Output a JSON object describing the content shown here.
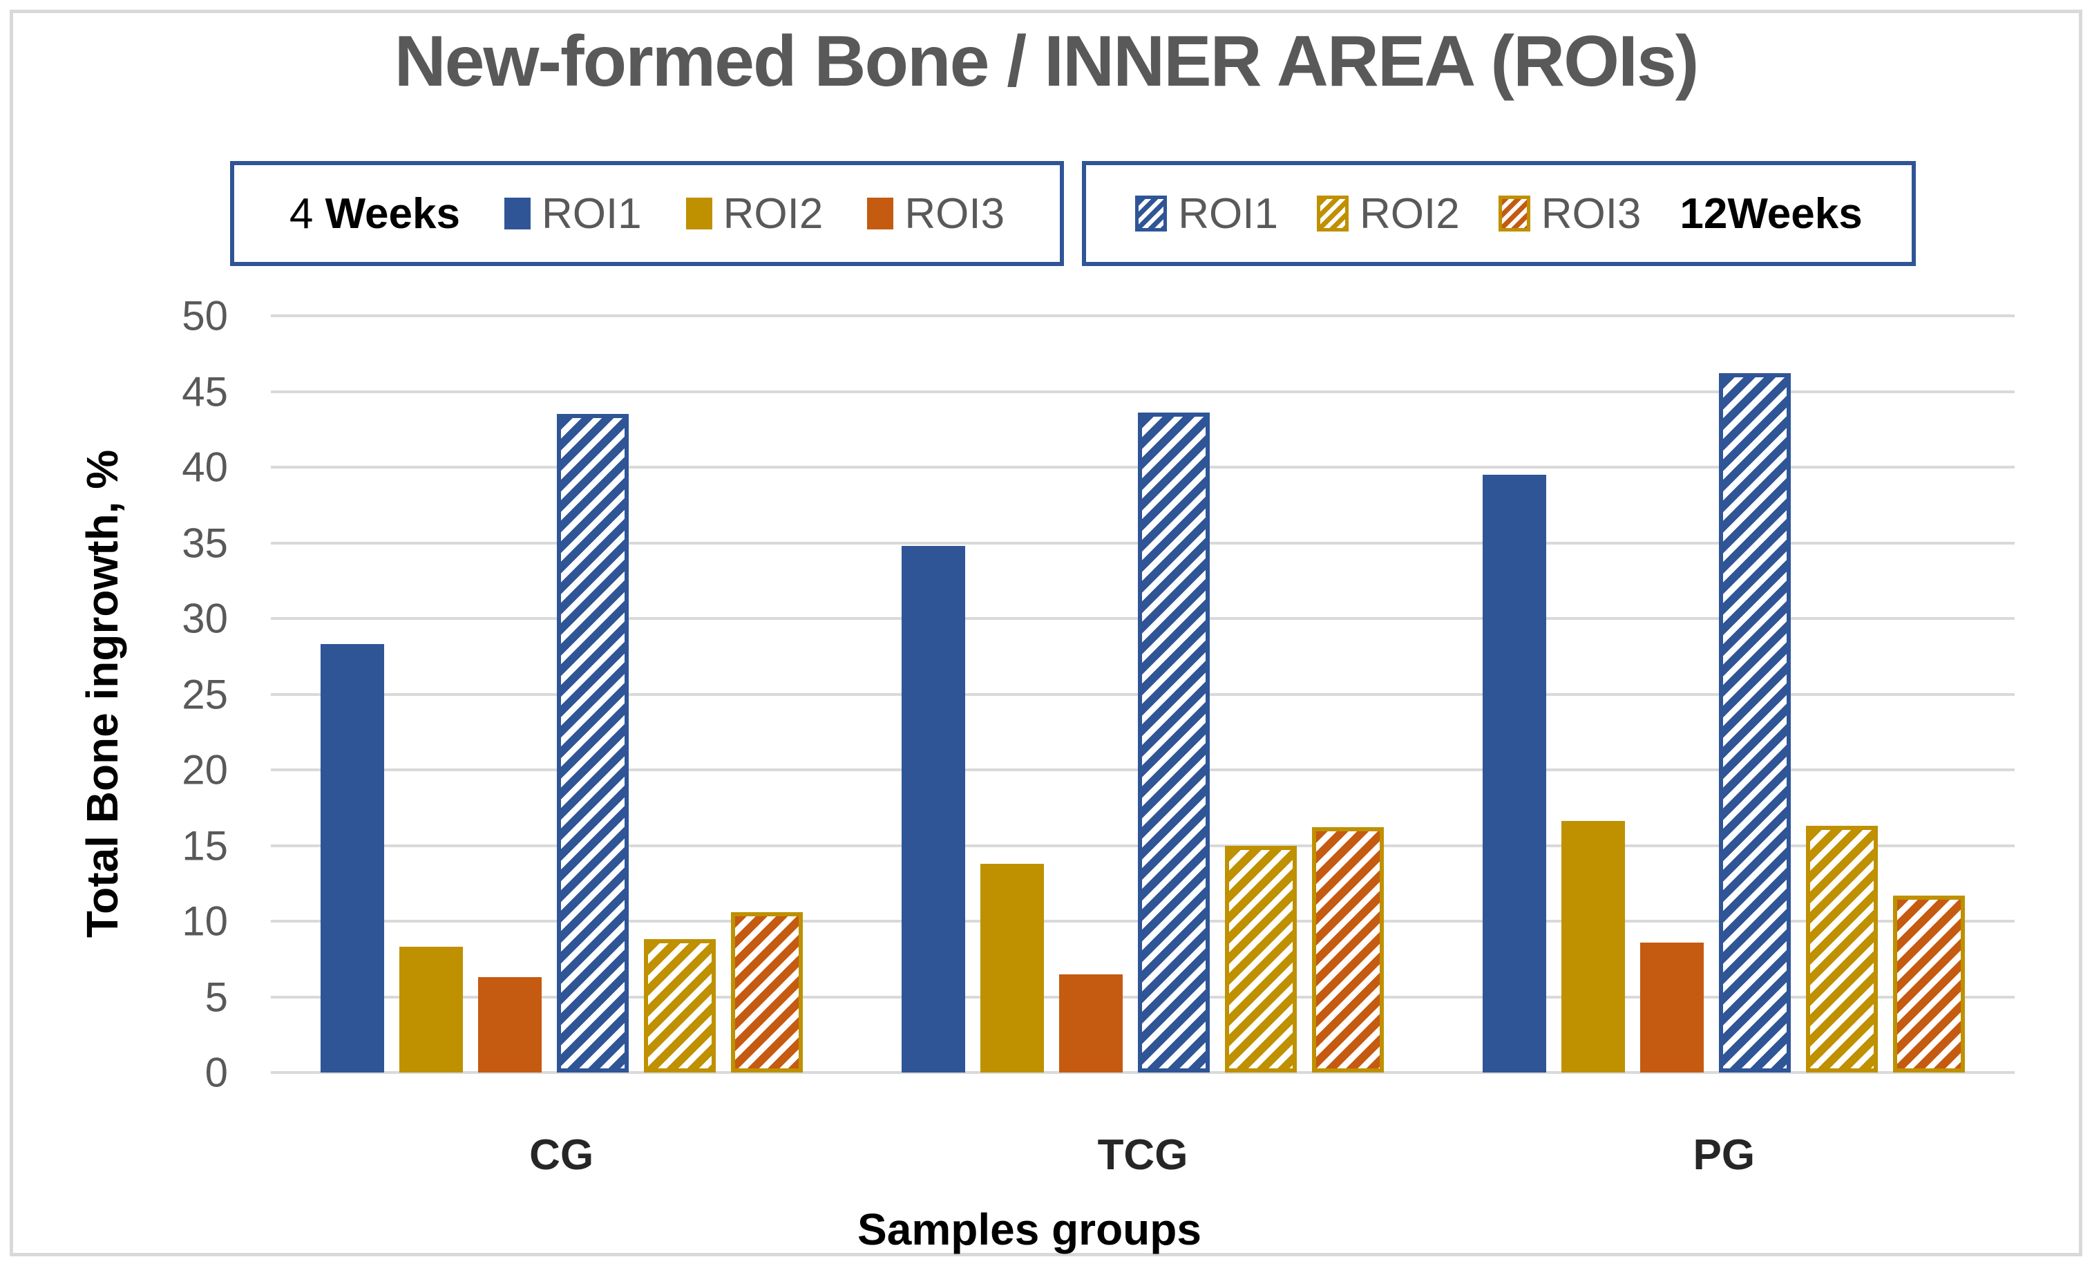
{
  "title": "New-formed Bone / INNER AREA (ROIs)",
  "legend": {
    "four_weeks_prefix": "4 ",
    "four_weeks_bold": "Weeks",
    "twelve_weeks": "12Weeks",
    "solid_items": [
      {
        "label": "ROI1",
        "color": "#2f5597"
      },
      {
        "label": "ROI2",
        "color": "#bf9000"
      },
      {
        "label": "ROI3",
        "color": "#c55a11"
      }
    ],
    "hatched_items": [
      {
        "label": "ROI1",
        "stripe": "#2f5597",
        "border": "#2f5597"
      },
      {
        "label": "ROI2",
        "stripe": "#bf9000",
        "border": "#bf9000"
      },
      {
        "label": "ROI3",
        "stripe": "#c55a11",
        "border": "#bf9000"
      }
    ]
  },
  "chart_data": {
    "type": "bar",
    "title": "New-formed Bone / INNER AREA (ROIs)",
    "xlabel": "Samples groups",
    "ylabel": "Total Bone ingrowth, %",
    "ylim": [
      0,
      50
    ],
    "ytick_step": 5,
    "grid": true,
    "legend_position": "top",
    "categories": [
      "CG",
      "TCG",
      "PG"
    ],
    "series": [
      {
        "name": "ROI1 4 Weeks",
        "style": "solid",
        "color": "#2f5597",
        "values": [
          28.3,
          34.8,
          39.5
        ]
      },
      {
        "name": "ROI2 4 Weeks",
        "style": "solid",
        "color": "#bf9000",
        "values": [
          8.3,
          13.8,
          16.6
        ]
      },
      {
        "name": "ROI3 4 Weeks",
        "style": "solid",
        "color": "#c55a11",
        "values": [
          6.3,
          6.5,
          8.6
        ]
      },
      {
        "name": "ROI1 12 Weeks",
        "style": "hatched",
        "color": "#2f5597",
        "border": "#2f5597",
        "values": [
          43.5,
          43.6,
          46.2
        ]
      },
      {
        "name": "ROI2 12 Weeks",
        "style": "hatched",
        "color": "#bf9000",
        "border": "#bf9000",
        "values": [
          8.8,
          15.0,
          16.3
        ]
      },
      {
        "name": "ROI3 12 Weeks",
        "style": "hatched",
        "color": "#c55a11",
        "border": "#bf9000",
        "values": [
          10.6,
          16.2,
          11.7
        ]
      }
    ]
  },
  "colors": {
    "grid": "#d9d9d9",
    "frame_border": "#d9d9d9",
    "tick_text": "#595959",
    "title_text": "#595959",
    "legend_border": "#2f5597",
    "axis_title_text": "#000000",
    "blue": "#2f5597",
    "gold": "#bf9000",
    "orange": "#c55a11"
  }
}
